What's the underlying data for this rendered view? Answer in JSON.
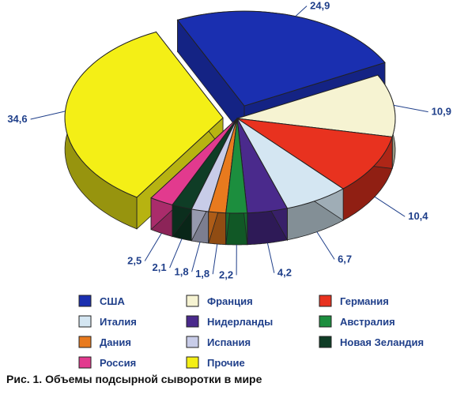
{
  "caption": "Рис. 1. Объемы подсырной сыворотки в мире",
  "chart_data": {
    "type": "pie",
    "title": "Рис. 1. Объемы подсырной сыворотки в мире",
    "categories": [
      "США",
      "Франция",
      "Германия",
      "Италия",
      "Нидерланды",
      "Австралия",
      "Дания",
      "Испания",
      "Новая Зеландия",
      "Россия",
      "Прочие"
    ],
    "values": [
      24.9,
      10.9,
      10.4,
      6.7,
      4.2,
      2.2,
      1.8,
      1.8,
      2.1,
      2.5,
      34.6
    ],
    "value_labels": [
      "24,9",
      "10,9",
      "10,4",
      "6,7",
      "4,2",
      "2,2",
      "1,8",
      "1,8",
      "2,1",
      "2,5",
      "34,6"
    ],
    "colors": [
      "#1a2fb0",
      "#f6f3d2",
      "#e8321f",
      "#d4e6f2",
      "#4a2a8c",
      "#1c8e3e",
      "#e87a1e",
      "#c8cce8",
      "#0f3d26",
      "#e23a8e",
      "#f4ef16"
    ],
    "legend_placement": "bottom"
  },
  "legend": {
    "items": [
      {
        "label": "США",
        "color": "#1a2fb0"
      },
      {
        "label": "Франция",
        "color": "#f6f3d2"
      },
      {
        "label": "Германия",
        "color": "#e8321f"
      },
      {
        "label": "Италия",
        "color": "#d4e6f2"
      },
      {
        "label": "Нидерланды",
        "color": "#4a2a8c"
      },
      {
        "label": "Австралия",
        "color": "#1c8e3e"
      },
      {
        "label": "Дания",
        "color": "#e87a1e"
      },
      {
        "label": "Испания",
        "color": "#c8cce8"
      },
      {
        "label": "Новая Зеландия",
        "color": "#0f3d26"
      },
      {
        "label": "Россия",
        "color": "#e23a8e"
      },
      {
        "label": "Прочие",
        "color": "#f4ef16"
      }
    ]
  }
}
